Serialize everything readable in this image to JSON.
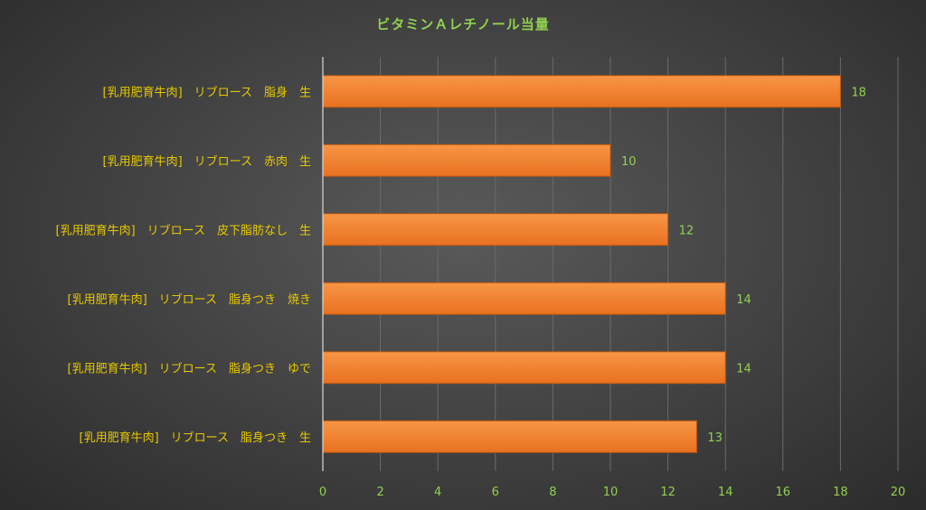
{
  "chart_data": {
    "type": "bar",
    "orientation": "horizontal",
    "title": "ビタミンＡレチノール当量",
    "categories": [
      "[乳用肥育牛肉]　リブロース　脂身　生",
      "[乳用肥育牛肉]　リブロース　赤肉　生",
      "[乳用肥育牛肉]　リブロース　皮下脂肪なし　生",
      "[乳用肥育牛肉]　リブロース　脂身つき　焼き",
      "[乳用肥育牛肉]　リブロース　脂身つき　ゆで",
      "[乳用肥育牛肉]　リブロース　脂身つき　生"
    ],
    "values": [
      18,
      10,
      12,
      14,
      14,
      13
    ],
    "xlim": [
      0,
      20
    ],
    "xticks": [
      0,
      2,
      4,
      6,
      8,
      10,
      12,
      14,
      16,
      18,
      20
    ],
    "grid": "vertical",
    "data_labels": true,
    "colors": {
      "bar_top": "#f79646",
      "bar_bottom": "#e8711f",
      "title": "#92d050",
      "category_text": "#e6c800",
      "tick_text": "#92d050"
    }
  }
}
